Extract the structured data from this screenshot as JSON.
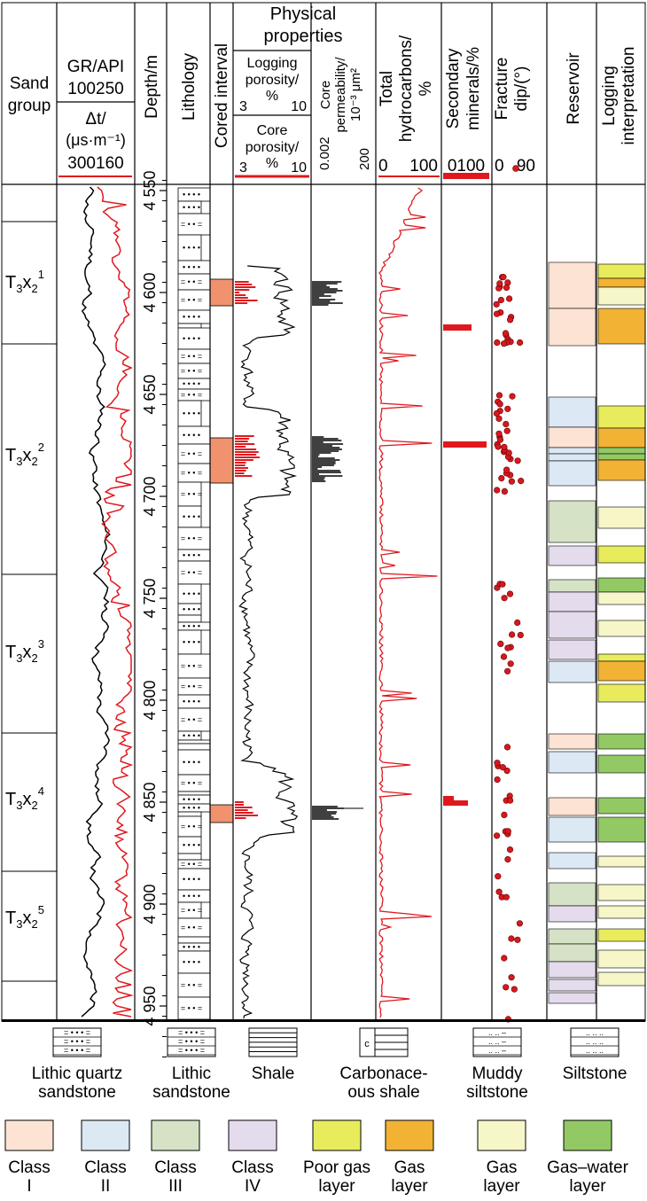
{
  "headers": {
    "sand_group": [
      "Sand",
      "group"
    ],
    "gr": "GR/API",
    "gr_range": "100250",
    "dt": [
      "Δt/",
      "(μs·m⁻¹)"
    ],
    "dt_range": "300160",
    "depth": "Depth/m",
    "lithology": "Lithology",
    "cored": "Cored interval",
    "physical": [
      "Physical",
      "properties"
    ],
    "log_por": [
      "Logging",
      "porosity/",
      "%"
    ],
    "log_por_min": "3",
    "log_por_max": "10",
    "core_por": [
      "Core",
      "porosity/",
      "%"
    ],
    "core_por_min": "3",
    "core_por_max": "10",
    "core_perm": [
      "Core",
      "permeability/",
      "10⁻³ μm²"
    ],
    "core_perm_min": "0.002",
    "core_perm_max": "200",
    "hydrocarbons": [
      "Total",
      "hydrocarbons/",
      "%"
    ],
    "hc_min": "0",
    "hc_max": "100",
    "secondary": [
      "Secondary",
      "minerals/%"
    ],
    "sec_range": "0100",
    "fracture": [
      "Fracture",
      "dip/(°)"
    ],
    "frac_min": "0",
    "frac_max": "90",
    "reservoir": "Reservoir",
    "interpretation": [
      "Logging",
      "interpretation"
    ]
  },
  "depth_ticks": [
    "4 550",
    "4 600",
    "4 650",
    "4 700",
    "4 750",
    "4 800",
    "4 850",
    "4 900",
    "4 950"
  ],
  "sand_groups": [
    {
      "base": "T",
      "sub": "3",
      "mid": "x",
      "sub2": "2",
      "sup": "1"
    },
    {
      "base": "T",
      "sub": "3",
      "mid": "x",
      "sub2": "2",
      "sup": "2"
    },
    {
      "base": "T",
      "sub": "3",
      "mid": "x",
      "sub2": "2",
      "sup": "3"
    },
    {
      "base": "T",
      "sub": "3",
      "mid": "x",
      "sub2": "2",
      "sup": "4"
    },
    {
      "base": "T",
      "sub": "3",
      "mid": "x",
      "sub2": "2",
      "sup": "5"
    }
  ],
  "lithology_legend": [
    {
      "label": [
        "Lithic quartz",
        "sandstone"
      ]
    },
    {
      "label": [
        "Lithic",
        "sandstone"
      ]
    },
    {
      "label": [
        "Shale"
      ]
    },
    {
      "label": [
        "Carbonace-",
        "ous shale"
      ]
    },
    {
      "label": [
        "Muddy",
        "siltstone"
      ]
    },
    {
      "label": [
        "Siltstone"
      ]
    }
  ],
  "color_legend": [
    {
      "label": [
        "Class",
        "I"
      ],
      "color": "#fde3d4"
    },
    {
      "label": [
        "Class",
        "II"
      ],
      "color": "#dce8f4"
    },
    {
      "label": [
        "Class",
        "III"
      ],
      "color": "#d6e2c6"
    },
    {
      "label": [
        "Class",
        "IV"
      ],
      "color": "#e4dced"
    },
    {
      "label": [
        "Poor gas",
        "layer"
      ],
      "color": "#e8ec5c"
    },
    {
      "label": [
        "Gas",
        "layer"
      ],
      "color": "#f2b233"
    },
    {
      "label": [
        "Gas",
        "layer"
      ],
      "color": "#f6f6c8"
    },
    {
      "label": [
        "Gas–water",
        "layer"
      ],
      "color": "#92c964"
    }
  ],
  "colors": {
    "curve_red": "#e0181e",
    "cored": "#f0926e",
    "frac_dot": "#d7191f"
  }
}
